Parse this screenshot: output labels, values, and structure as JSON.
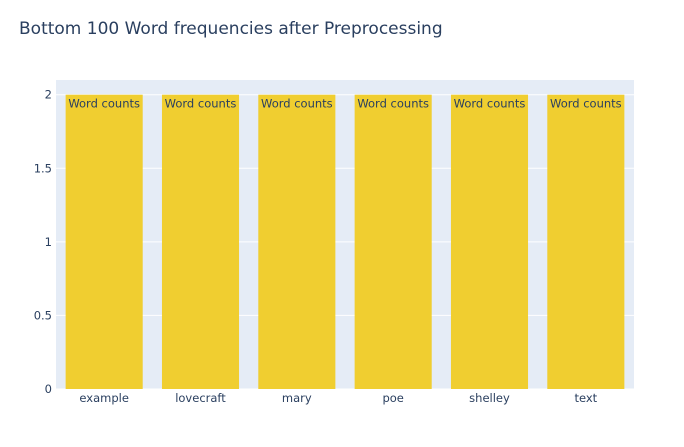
{
  "chart_data": {
    "type": "bar",
    "title": "Bottom 100 Word frequencies after Preprocessing",
    "xlabel": "",
    "ylabel": "",
    "categories": [
      "example",
      "lovecraft",
      "mary",
      "poe",
      "shelley",
      "text"
    ],
    "series": [
      {
        "values": [
          2,
          2,
          2,
          2,
          2,
          2
        ],
        "color": "#f0ce30",
        "text": "Word counts"
      }
    ],
    "ylim": [
      0,
      2.1
    ],
    "yticks": [
      0,
      0.5,
      1,
      1.5,
      2
    ],
    "ytick_labels": [
      "0",
      "0.5",
      "1",
      "1.5",
      "2"
    ],
    "grid": true,
    "legend": "none",
    "colors": {
      "plot_background": "#e5ecf6",
      "gridline": "#ffffff",
      "text": "#2a3f5f",
      "bar": "#f0ce30"
    }
  }
}
